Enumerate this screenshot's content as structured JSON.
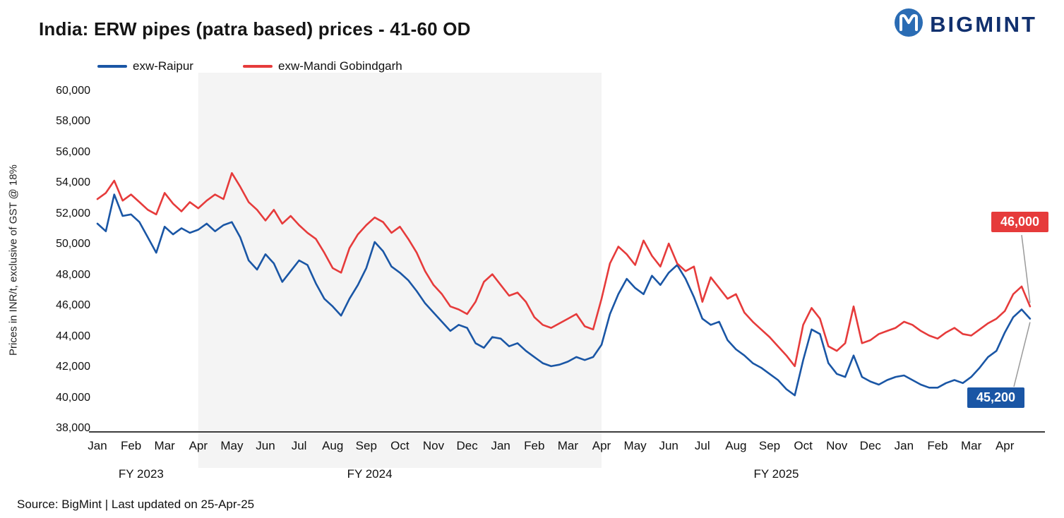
{
  "header": {
    "title": "India: ERW pipes (patra based) prices - 41-60 OD"
  },
  "logo": {
    "text": "BIGMINT",
    "text_color": "#11306e",
    "icon_color": "#2a6cb4",
    "icon_name": "bigmint-logo-icon"
  },
  "legend": [
    {
      "label": "exw-Raipur",
      "color": "#1a56a5"
    },
    {
      "label": "exw-Mandi Gobindgarh",
      "color": "#e63b3b"
    }
  ],
  "footer": {
    "source": "Source: BigMint | Last updated on 25-Apr-25"
  },
  "chart_data": {
    "type": "line",
    "title": "India: ERW pipes (patra based) prices - 41-60 OD",
    "xlabel": "",
    "ylabel": "Prices in INR/t, exclusive of GST @ 18%",
    "ylim": [
      38000,
      60000
    ],
    "ytick_step": 2000,
    "grid": false,
    "legend_position": "top",
    "x_unit": "months since Jan 2023 (0 = Jan 2023, 12 = Jan 2024, 24 = Jan 2025)",
    "month_labels": [
      "Jan",
      "Feb",
      "Mar",
      "Apr",
      "May",
      "Jun",
      "Jul",
      "Aug",
      "Sep",
      "Oct",
      "Nov",
      "Dec",
      "Jan",
      "Feb",
      "Mar",
      "Apr",
      "May",
      "Jun",
      "Jul",
      "Aug",
      "Sep",
      "Oct",
      "Nov",
      "Dec",
      "Jan",
      "Feb",
      "Mar",
      "Apr"
    ],
    "fy_labels": [
      {
        "label": "FY 2023",
        "month": 1.3
      },
      {
        "label": "FY 2024",
        "month": 8.1
      },
      {
        "label": "FY 2025",
        "month": 20.2
      }
    ],
    "shaded_band": {
      "from_month": 3,
      "to_month": 15,
      "color": "#f4f4f4"
    },
    "x": [
      0,
      0.25,
      0.5,
      0.75,
      1,
      1.25,
      1.5,
      1.75,
      2,
      2.25,
      2.5,
      2.75,
      3,
      3.25,
      3.5,
      3.75,
      4,
      4.25,
      4.5,
      4.75,
      5,
      5.25,
      5.5,
      5.75,
      6,
      6.25,
      6.5,
      6.75,
      7,
      7.25,
      7.5,
      7.75,
      8,
      8.25,
      8.5,
      8.75,
      9,
      9.25,
      9.5,
      9.75,
      10,
      10.25,
      10.5,
      10.75,
      11,
      11.25,
      11.5,
      11.75,
      12,
      12.25,
      12.5,
      12.75,
      13,
      13.25,
      13.5,
      13.75,
      14,
      14.25,
      14.5,
      14.75,
      15,
      15.25,
      15.5,
      15.75,
      16,
      16.25,
      16.5,
      16.75,
      17,
      17.25,
      17.5,
      17.75,
      18,
      18.25,
      18.5,
      18.75,
      19,
      19.25,
      19.5,
      19.75,
      20,
      20.25,
      20.5,
      20.75,
      21,
      21.25,
      21.5,
      21.75,
      22,
      22.25,
      22.5,
      22.75,
      23,
      23.25,
      23.5,
      23.75,
      24,
      24.25,
      24.5,
      24.75,
      25,
      25.25,
      25.5,
      25.75,
      26,
      26.25,
      26.5,
      26.75,
      27,
      27.25,
      27.5,
      27.75
    ],
    "series": [
      {
        "name": "exw-Raipur",
        "color": "#1a56a5",
        "values": [
          51400,
          50900,
          53300,
          51900,
          52000,
          51500,
          50500,
          49500,
          51200,
          50700,
          51100,
          50800,
          51000,
          51400,
          50900,
          51300,
          51500,
          50500,
          49000,
          48400,
          49400,
          48800,
          47600,
          48300,
          49000,
          48700,
          47500,
          46500,
          46000,
          45400,
          46500,
          47400,
          48500,
          50200,
          49600,
          48600,
          48200,
          47700,
          47000,
          46200,
          45600,
          45000,
          44400,
          44800,
          44600,
          43600,
          43300,
          44000,
          43900,
          43400,
          43600,
          43100,
          42700,
          42300,
          42100,
          42200,
          42400,
          42700,
          42500,
          42700,
          43500,
          45500,
          46800,
          47800,
          47200,
          46800,
          48000,
          47400,
          48200,
          48700,
          47800,
          46600,
          45200,
          44800,
          45000,
          43800,
          43200,
          42800,
          42300,
          42000,
          41600,
          41200,
          40600,
          40200,
          42500,
          44500,
          44200,
          42300,
          41600,
          41400,
          42800,
          41400,
          41100,
          40900,
          41200,
          41400,
          41500,
          41200,
          40900,
          40700,
          40700,
          41000,
          41200,
          41000,
          41400,
          42000,
          42700,
          43100,
          44300,
          45300,
          45800,
          45200
        ]
      },
      {
        "name": "exw-Mandi Gobindgarh",
        "color": "#e63b3b",
        "values": [
          53000,
          53400,
          54200,
          52900,
          53300,
          52800,
          52300,
          52000,
          53400,
          52700,
          52200,
          52800,
          52400,
          52900,
          53300,
          53000,
          54700,
          53800,
          52800,
          52300,
          51600,
          52300,
          51400,
          51900,
          51300,
          50800,
          50400,
          49500,
          48500,
          48200,
          49800,
          50700,
          51300,
          51800,
          51500,
          50800,
          51200,
          50400,
          49500,
          48300,
          47400,
          46800,
          46000,
          45800,
          45500,
          46300,
          47600,
          48100,
          47400,
          46700,
          46900,
          46300,
          45300,
          44800,
          44600,
          44900,
          45200,
          45500,
          44700,
          44500,
          46500,
          48800,
          49900,
          49400,
          48700,
          50300,
          49300,
          48600,
          50100,
          48800,
          48300,
          48600,
          46300,
          47900,
          47200,
          46500,
          46800,
          45600,
          45000,
          44500,
          44000,
          43400,
          42800,
          42100,
          44800,
          45900,
          45200,
          43400,
          43100,
          43600,
          46000,
          43600,
          43800,
          44200,
          44400,
          44600,
          45000,
          44800,
          44400,
          44100,
          43900,
          44300,
          44600,
          44200,
          44100,
          44500,
          44900,
          45200,
          45700,
          46800,
          47300,
          46000
        ]
      }
    ],
    "annotations": [
      {
        "text": "46,000",
        "value": 46000,
        "series": "exw-Mandi Gobindgarh",
        "bg": "#e63b3b"
      },
      {
        "text": "45,200",
        "value": 45200,
        "series": "exw-Raipur",
        "bg": "#1a56a5"
      }
    ]
  }
}
